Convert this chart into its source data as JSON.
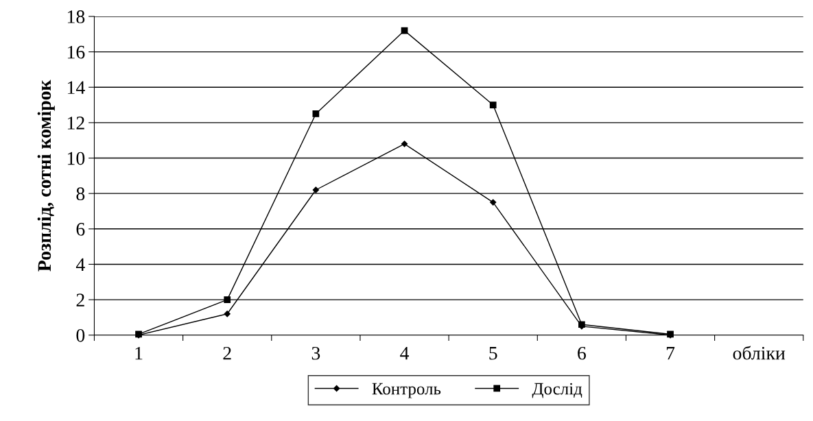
{
  "chart_data": {
    "type": "line",
    "xlabel": "обліки",
    "ylabel": "Розплід, сотні комірок",
    "categories": [
      "1",
      "2",
      "3",
      "4",
      "5",
      "6",
      "7"
    ],
    "series": [
      {
        "name": "Контроль",
        "color": "#000000",
        "marker": "diamond",
        "values": [
          0,
          1.2,
          8.2,
          10.8,
          7.5,
          0.5,
          0
        ]
      },
      {
        "name": "Дослід",
        "color": "#000000",
        "marker": "square",
        "values": [
          0.05,
          2.0,
          12.5,
          17.2,
          13.0,
          0.6,
          0.05
        ]
      }
    ],
    "ylim": [
      0,
      18
    ],
    "yticks": [
      0,
      2,
      4,
      6,
      8,
      10,
      12,
      14,
      16,
      18
    ],
    "grid": "y",
    "legend": "bottom",
    "line_style": "solid"
  }
}
